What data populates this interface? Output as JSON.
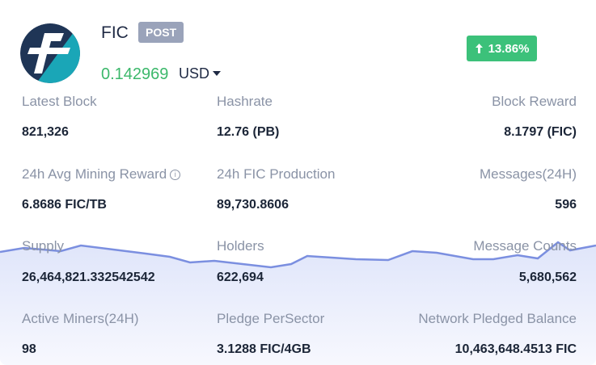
{
  "header": {
    "coin_name": "FIC",
    "badge": "POST",
    "price": "0.142969",
    "currency": "USD",
    "change": "13.86%",
    "change_direction_icon": "arrow-up-icon",
    "logo_icon": "filecoin-logo"
  },
  "colors": {
    "price_green": "#3cb86b",
    "change_badge": "#3cc17a",
    "post_badge": "#9aa3ba",
    "chart_line": "#7b8fe0",
    "chart_fill": "#e9edfb"
  },
  "stats": [
    {
      "label": "Latest Block",
      "value": "821,326"
    },
    {
      "label": "Hashrate",
      "value": "12.76 (PB)"
    },
    {
      "label": "Block Reward",
      "value": "8.1797 (FIC)"
    },
    {
      "label": "24h Avg Mining Reward",
      "value": "6.8686 FIC/TB"
    },
    {
      "label": "24h FIC Production",
      "value": "89,730.8606"
    },
    {
      "label": "Messages(24H)",
      "value": "596"
    },
    {
      "label": "Supply",
      "value": "26,464,821.332542542"
    },
    {
      "label": "Holders",
      "value": "622,694"
    },
    {
      "label": "Message Counts",
      "value": "5,680,562"
    },
    {
      "label": "Active Miners(24H)",
      "value": "98"
    },
    {
      "label": "Pledge PerSector",
      "value": "3.1288 FIC/4GB"
    },
    {
      "label": "Network Pledged Balance",
      "value": "10,463,648.4513 FIC"
    }
  ]
}
